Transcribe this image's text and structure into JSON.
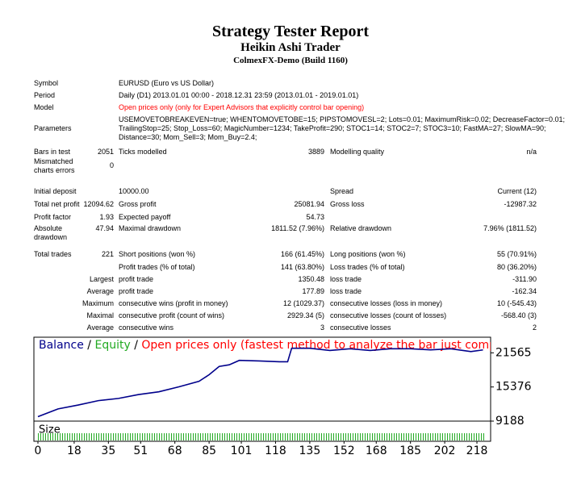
{
  "header": {
    "title": "Strategy Tester Report",
    "subtitle": "Heikin Ashi Trader",
    "server": "ColmexFX-Demo (Build 1160)"
  },
  "rows": [
    {
      "label": "Symbol",
      "text": [
        "EURUSD (Euro vs US Dollar)"
      ]
    },
    {
      "label": "Period",
      "text": [
        "Daily (D1) 2013.01.01 00:00 - 2018.12.31 23:59 (2013.01.01 - 2019.01.01)"
      ]
    },
    {
      "label": "Model",
      "text": [
        "Open prices only (only for Expert Advisors that explicitly control bar opening)"
      ],
      "color": "#ff0000"
    },
    {
      "label": "Parameters",
      "text": [
        "USEMOVETOBREAKEVEN=true; WHENTOMOVETOBE=15; PIPSTOMOVESL=2; Lots=0.01; MaximumRisk=0.02; DecreaseFactor=0.01;",
        "TrailingStop=25; Stop_Loss=60; MagicNumber=1234; TakeProfit=290; STOC1=14; STOC2=7; STOC3=10; FastMA=27; SlowMA=90;",
        "Distance=30; Mom_Sell=3; Mom_Buy=2.4;"
      ]
    },
    {
      "label": "Bars in test",
      "v1": "2051",
      "l2": "Ticks modelled",
      "v2": "3889",
      "l3": "Modelling quality",
      "v3": "n/a"
    },
    {
      "label": "Mismatched charts errors",
      "v1": "0"
    },
    {
      "label": "Initial deposit",
      "text": [
        "10000.00"
      ],
      "l3": "Spread",
      "v3": "Current (12)"
    },
    {
      "label": "Total net profit",
      "v1": "12094.62",
      "l2": "Gross profit",
      "v2": "25081.94",
      "l3": "Gross loss",
      "v3": "-12987.32"
    },
    {
      "label": "Profit factor",
      "v1": "1.93",
      "l2": "Expected payoff",
      "v2": "54.73"
    },
    {
      "label": "Absolute drawdown",
      "v1": "47.94",
      "l2": "Maximal drawdown",
      "v2": "1811.52 (7.96%)",
      "l3": "Relative drawdown",
      "v3": "7.96% (1811.52)"
    },
    {
      "label": "Total trades",
      "v1": "221",
      "l2": "Short positions (won %)",
      "v2": "166 (61.45%)",
      "l3": "Long positions (won %)",
      "v3": "55 (70.91%)"
    },
    {
      "l2": "Profit trades (% of total)",
      "v2": "141 (63.80%)",
      "l3": "Loss trades (% of total)",
      "v3": "80 (36.20%)"
    },
    {
      "v1": "Largest",
      "l2": "profit trade",
      "v2": "1350.48",
      "l3": "loss trade",
      "v3": "-311.90"
    },
    {
      "v1": "Average",
      "l2": "profit trade",
      "v2": "177.89",
      "l3": "loss trade",
      "v3": "-162.34"
    },
    {
      "v1": "Maximum",
      "l2": "consecutive wins (profit in money)",
      "v2": "12 (1029.37)",
      "l3": "consecutive losses (loss in money)",
      "v3": "10 (-545.43)"
    },
    {
      "v1": "Maximal",
      "l2": "consecutive profit (count of wins)",
      "v2": "2929.34 (5)",
      "l3": "consecutive losses (count of losses)",
      "v3": "-568.40 (3)"
    },
    {
      "v1": "Average",
      "l2": "consecutive wins",
      "v2": "3",
      "l3": "consecutive losses",
      "v3": "2"
    }
  ],
  "chart_data": {
    "type": "line",
    "legend": [
      {
        "text": "Balance",
        "color": "#00008b"
      },
      {
        "text": "/",
        "color": "#000000"
      },
      {
        "text": "Equity",
        "color": "#22aa22"
      },
      {
        "text": "/",
        "color": "#000000"
      },
      {
        "text": "Open prices only (fastest method to analyze the bar just completed, only for EAs that",
        "color": "#ff0000"
      }
    ],
    "size_label": "Size",
    "xlim": [
      0,
      224
    ],
    "ylim": [
      9188,
      24400
    ],
    "xticks": [
      0,
      18,
      35,
      51,
      68,
      85,
      101,
      118,
      135,
      152,
      168,
      185,
      202,
      218
    ],
    "yticks": [
      9188,
      15376,
      21565
    ],
    "series": [
      {
        "name": "Balance",
        "color": "#00008b",
        "x": [
          0,
          10,
          20,
          30,
          40,
          50,
          60,
          70,
          80,
          85,
          90,
          95,
          100,
          110,
          120,
          124,
          126,
          135,
          145,
          155,
          165,
          175,
          185,
          195,
          205,
          215,
          221
        ],
        "values": [
          10000,
          11400,
          12100,
          12900,
          13300,
          14000,
          14500,
          15400,
          16400,
          17600,
          19100,
          19400,
          20200,
          20100,
          19950,
          19950,
          22400,
          22400,
          22000,
          22300,
          22000,
          22300,
          22300,
          22100,
          22300,
          21800,
          22094.62
        ]
      }
    ]
  }
}
